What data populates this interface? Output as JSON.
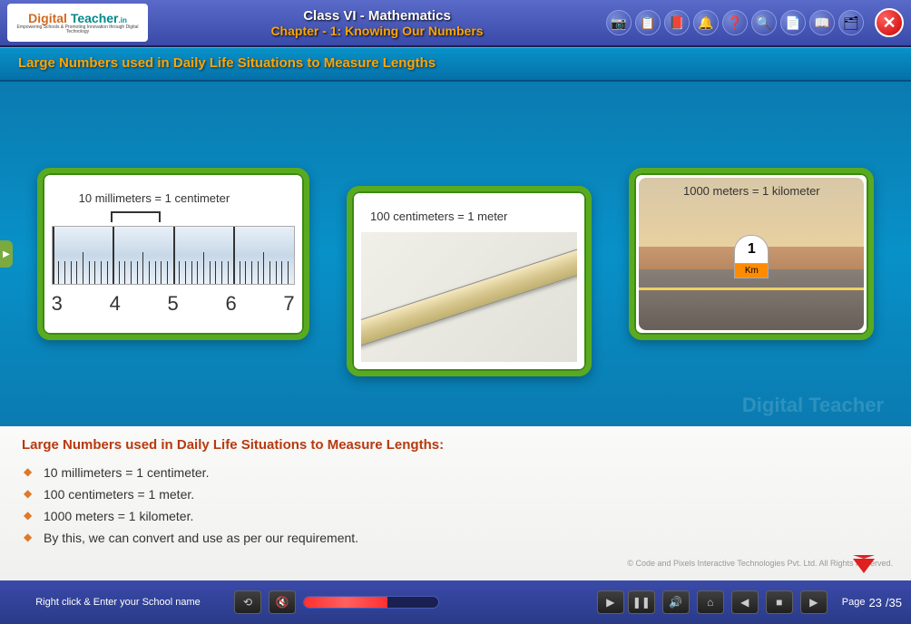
{
  "header": {
    "logo_main": "Digital Teacher",
    "logo_tagline": "Empowering Schools & Promoting Innovation through Digital Technology",
    "class_title": "Class VI - Mathematics",
    "chapter_title": "Chapter - 1: Knowing Our Numbers"
  },
  "toolbar_icons": [
    "📷",
    "📋",
    "📕",
    "🔔",
    "❓",
    "🔍",
    "📄",
    "📖",
    "🗂"
  ],
  "topic": {
    "title": "Large Numbers used in Daily Life Situations to Measure Lengths"
  },
  "cards": {
    "mm_cm": {
      "label": "10 millimeters = 1 centimeter",
      "ruler_numbers": [
        "3",
        "4",
        "5",
        "6",
        "7"
      ]
    },
    "cm_m": {
      "label": "100 centimeters = 1 meter"
    },
    "m_km": {
      "label": "1000 meters = 1 kilometer",
      "milestone_num": "1",
      "milestone_unit": "Km"
    }
  },
  "info": {
    "heading": "Large Numbers used in Daily Life Situations to Measure Lengths:",
    "points": [
      "10 millimeters = 1 centimeter.",
      "100 centimeters = 1 meter.",
      "1000 meters = 1 kilometer.",
      "By this, we can convert and use as per our requirement."
    ],
    "copyright": "© Code and Pixels Interactive Technologies  Pvt. Ltd.  All Rights Reserved."
  },
  "footer": {
    "school_prompt": "Right click & Enter your School name",
    "page_label": "Page",
    "page_current": "23",
    "page_total": "/35",
    "progress_pct": 62
  },
  "watermark": "Digital Teacher",
  "colors": {
    "accent_orange": "#ffa500",
    "card_border": "#5aaa20",
    "heading_red": "#b8390e",
    "bullet": "#e07828"
  }
}
